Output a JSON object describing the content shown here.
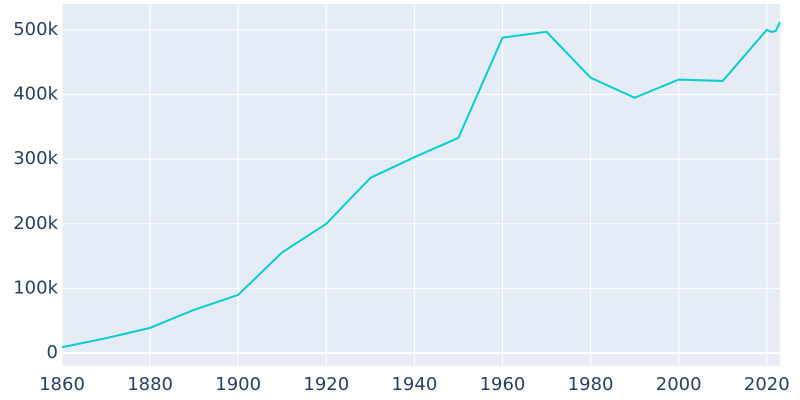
{
  "chart_data": {
    "type": "line",
    "x": [
      1860,
      1870,
      1880,
      1890,
      1900,
      1910,
      1920,
      1930,
      1940,
      1950,
      1960,
      1970,
      1980,
      1990,
      2000,
      2010,
      2020,
      2021,
      2022,
      2023
    ],
    "series": [
      {
        "color": "#00ced1",
        "values": [
          9000,
          23000,
          39000,
          67000,
          90000,
          156000,
          200000,
          271000,
          303000,
          333000,
          488000,
          497000,
          426000,
          395000,
          423000,
          421000,
          500000,
          497000,
          498000,
          512000
        ]
      }
    ],
    "xlim": [
      1860,
      2023
    ],
    "xticks": [
      1860,
      1880,
      1900,
      1920,
      1940,
      1960,
      1980,
      2000,
      2020
    ],
    "ylim": [
      -20000,
      540000
    ],
    "yticks": [
      0,
      {
        "value": 100000,
        "label": "100k"
      },
      {
        "value": 200000,
        "label": "200k"
      },
      {
        "value": 300000,
        "label": "300k"
      },
      {
        "value": 400000,
        "label": "400k"
      },
      {
        "value": 500000,
        "label": "500k"
      }
    ],
    "grid": true,
    "background": "#e5ecf6"
  }
}
